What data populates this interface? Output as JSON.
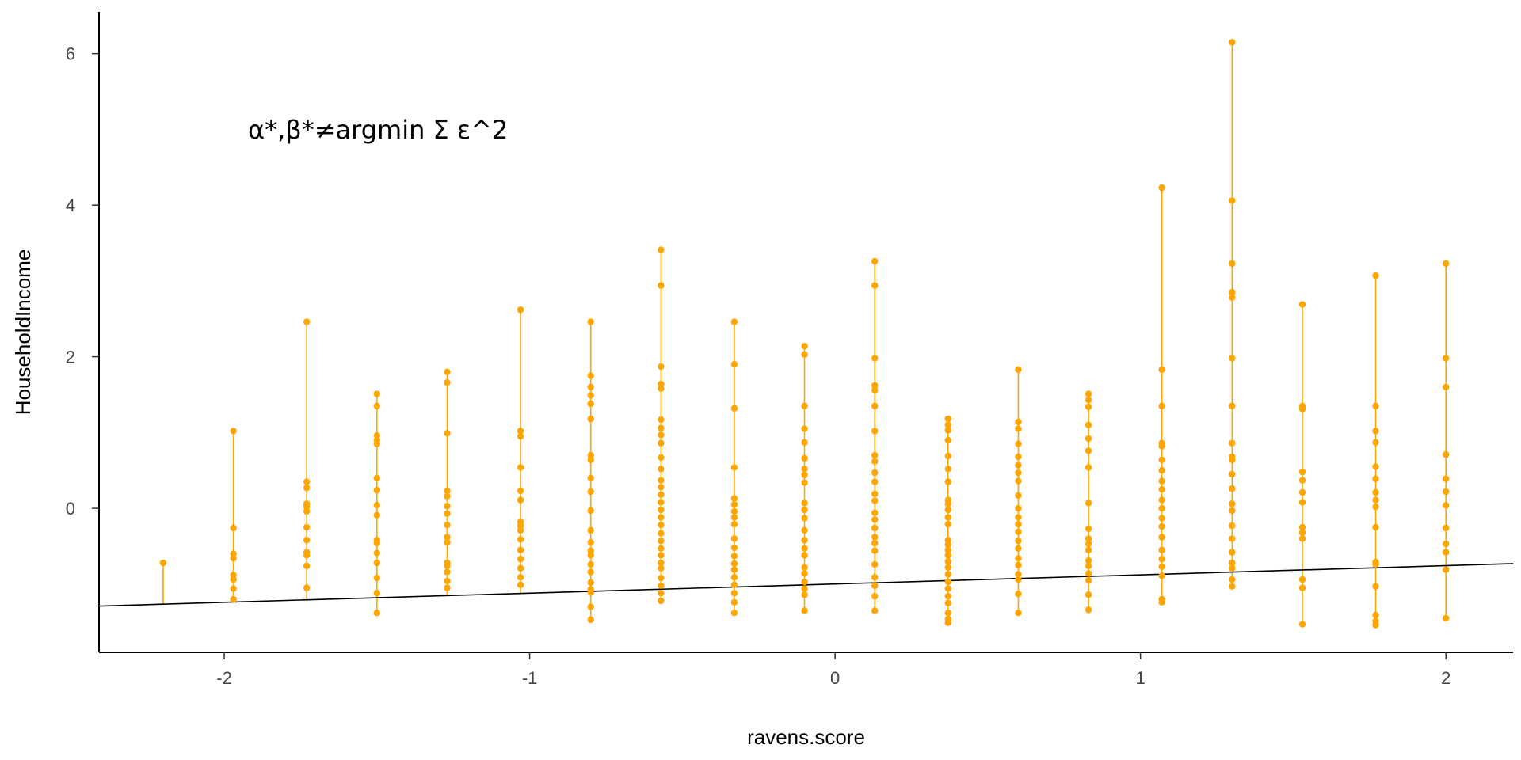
{
  "chart_data": {
    "type": "scatter",
    "xlabel": "ravens.score",
    "ylabel": "HouseholdIncome",
    "annotation": "α*,β*≠argmin Σ ε^2",
    "xlim": [
      -2.41,
      2.22
    ],
    "ylim": [
      -1.9,
      6.55
    ],
    "x_ticks": [
      -2,
      -1,
      0,
      1,
      2
    ],
    "y_ticks": [
      0,
      2,
      4,
      6
    ],
    "colors": {
      "points": "#FFA500",
      "segments": "#FFA500",
      "line": "#000000"
    },
    "fitted_line": {
      "x": [
        -2.41,
        2.22
      ],
      "y": [
        -1.29,
        -0.73
      ]
    },
    "series": [
      {
        "x": -2.2,
        "values": [
          -0.72
        ]
      },
      {
        "x": -1.97,
        "values": [
          1.02,
          -0.26,
          -0.6,
          -0.66,
          -0.88,
          -0.94,
          -1.06,
          -1.2
        ]
      },
      {
        "x": -1.73,
        "values": [
          2.46,
          0.35,
          0.27,
          0.06,
          0.02,
          -0.04,
          -0.25,
          -0.42,
          -0.58,
          -0.62,
          -0.76,
          -1.05
        ]
      },
      {
        "x": -1.5,
        "values": [
          1.51,
          1.35,
          0.96,
          0.9,
          0.85,
          0.4,
          0.24,
          0.04,
          -0.09,
          -0.42,
          -0.46,
          -0.59,
          -0.72,
          -0.92,
          -1.12,
          -1.38
        ]
      },
      {
        "x": -1.27,
        "values": [
          1.8,
          1.66,
          0.99,
          0.23,
          0.16,
          0.03,
          -0.07,
          -0.22,
          -0.38,
          -0.45,
          -0.72,
          -0.76,
          -0.84,
          -0.96,
          -1.05
        ]
      },
      {
        "x": -1.03,
        "values": [
          2.62,
          1.02,
          0.95,
          0.54,
          0.23,
          0.11,
          -0.18,
          -0.23,
          -0.29,
          -0.41,
          -0.55,
          -0.67,
          -0.79,
          -0.91,
          -1.01
        ]
      },
      {
        "x": -0.8,
        "values": [
          2.46,
          1.75,
          1.6,
          1.49,
          1.38,
          1.18,
          0.7,
          0.64,
          0.4,
          0.22,
          -0.03,
          -0.29,
          -0.45,
          -0.56,
          -0.62,
          -0.74,
          -0.84,
          -0.98,
          -1.07,
          -1.11,
          -1.3,
          -1.47
        ]
      },
      {
        "x": -0.57,
        "values": [
          3.41,
          2.94,
          1.87,
          1.64,
          1.58,
          1.17,
          1.06,
          0.97,
          0.86,
          0.67,
          0.52,
          0.37,
          0.28,
          0.18,
          0.08,
          -0.02,
          -0.12,
          -0.22,
          -0.33,
          -0.43,
          -0.53,
          -0.62,
          -0.72,
          -0.79,
          -0.92,
          -1.02,
          -1.12,
          -1.22
        ]
      },
      {
        "x": -0.33,
        "values": [
          2.46,
          1.9,
          1.32,
          0.54,
          0.13,
          0.05,
          -0.04,
          -0.12,
          -0.21,
          -0.4,
          -0.52,
          -0.63,
          -0.73,
          -0.81,
          -0.91,
          -1.01,
          -1.12,
          -1.24,
          -1.38
        ]
      },
      {
        "x": -0.1,
        "values": [
          2.14,
          2.03,
          1.35,
          1.05,
          0.87,
          0.66,
          0.52,
          0.44,
          0.34,
          0.07,
          -0.02,
          -0.13,
          -0.29,
          -0.42,
          -0.53,
          -0.62,
          -0.78,
          -0.86,
          -0.97,
          -1.06,
          -1.14,
          -1.35
        ]
      },
      {
        "x": 0.13,
        "values": [
          3.26,
          2.94,
          1.98,
          1.62,
          1.56,
          1.35,
          1.02,
          0.7,
          0.62,
          0.47,
          0.35,
          0.19,
          0.1,
          -0.06,
          -0.15,
          -0.26,
          -0.38,
          -0.46,
          -0.56,
          -0.74,
          -0.91,
          -1.02,
          -1.16,
          -1.35
        ]
      },
      {
        "x": 0.37,
        "values": [
          1.18,
          1.1,
          1.03,
          0.9,
          0.69,
          0.52,
          0.35,
          0.11,
          0.06,
          -0.02,
          -0.12,
          -0.21,
          -0.42,
          -0.48,
          -0.55,
          -0.62,
          -0.7,
          -0.78,
          -0.87,
          -0.97,
          -1.06,
          -1.16,
          -1.25,
          -1.38,
          -1.46,
          -1.51
        ]
      },
      {
        "x": 0.6,
        "values": [
          1.83,
          1.14,
          1.05,
          0.85,
          0.68,
          0.57,
          0.47,
          0.36,
          0.17,
          0.0,
          -0.12,
          -0.21,
          -0.31,
          -0.43,
          -0.53,
          -0.66,
          -0.75,
          -0.87,
          -0.94,
          -1.13,
          -1.38
        ]
      },
      {
        "x": 0.83,
        "values": [
          1.51,
          1.43,
          1.34,
          1.1,
          0.92,
          0.76,
          0.54,
          0.07,
          -0.27,
          -0.4,
          -0.47,
          -0.55,
          -0.69,
          -0.76,
          -0.86,
          -0.95,
          -1.14,
          -1.34
        ]
      },
      {
        "x": 1.07,
        "values": [
          4.23,
          1.83,
          1.35,
          0.86,
          0.82,
          0.64,
          0.5,
          0.36,
          0.25,
          0.11,
          0.0,
          -0.13,
          -0.24,
          -0.38,
          -0.55,
          -0.67,
          -0.77,
          -0.89,
          -1.2,
          -1.24
        ]
      },
      {
        "x": 1.3,
        "values": [
          6.15,
          4.06,
          3.23,
          2.85,
          2.78,
          1.98,
          1.35,
          0.86,
          0.68,
          0.64,
          0.45,
          0.26,
          0.06,
          -0.03,
          -0.23,
          -0.4,
          -0.58,
          -0.72,
          -0.79,
          -0.94,
          -1.03
        ]
      },
      {
        "x": 1.53,
        "values": [
          2.69,
          1.35,
          1.31,
          0.48,
          0.37,
          0.21,
          0.08,
          -0.25,
          -0.32,
          -0.4,
          -0.94,
          -1.05,
          -1.53
        ]
      },
      {
        "x": 1.77,
        "values": [
          3.07,
          1.35,
          1.02,
          0.87,
          0.55,
          0.39,
          0.21,
          0.11,
          0.02,
          -0.25,
          -0.71,
          -0.74,
          -1.03,
          -1.41,
          -1.49,
          -1.54
        ]
      },
      {
        "x": 2.0,
        "values": [
          3.23,
          1.98,
          1.6,
          0.71,
          0.39,
          0.22,
          0.04,
          -0.26,
          -0.47,
          -0.58,
          -0.81,
          -1.45
        ]
      }
    ]
  }
}
